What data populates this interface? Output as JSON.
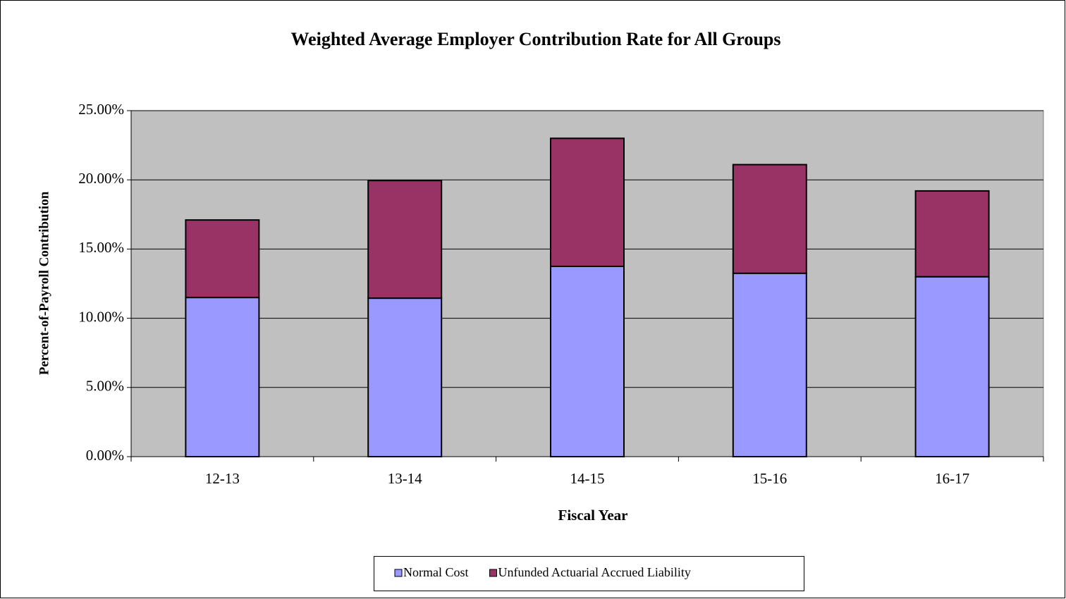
{
  "chart_data": {
    "type": "stacked_bar",
    "title": "Weighted Average Employer Contribution Rate for All Groups",
    "x_label": "Fiscal Year",
    "y_label": "Percent-of-Payroll Contribution",
    "categories": [
      "12-13",
      "13-14",
      "14-15",
      "15-16",
      "16-17"
    ],
    "series": [
      {
        "name": "Normal Cost",
        "color": "#9999ff",
        "values": [
          11.5,
          11.45,
          13.75,
          13.25,
          13.0
        ]
      },
      {
        "name": "Unfunded Actuarial Accrued Liability",
        "color": "#993366",
        "values": [
          5.6,
          8.5,
          9.25,
          7.85,
          6.2
        ]
      }
    ],
    "ylim": [
      0,
      25
    ],
    "yticks": [
      {
        "value": 0,
        "label": "0.00%"
      },
      {
        "value": 5,
        "label": "5.00%"
      },
      {
        "value": 10,
        "label": "10.00%"
      },
      {
        "value": 15,
        "label": "15.00%"
      },
      {
        "value": 20,
        "label": "20.00%"
      },
      {
        "value": 25,
        "label": "25.00%"
      }
    ],
    "grid": true,
    "plot_background": "#c0c0c0",
    "legend": "bottom"
  }
}
